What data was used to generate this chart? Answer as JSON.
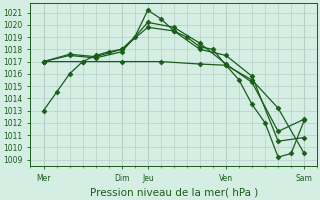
{
  "title": "Pression niveau de la mer( hPa )",
  "bg_color": "#d4eee4",
  "grid_color": "#b8cfc8",
  "line_color": "#1a5c1a",
  "ylim": [
    1008.5,
    1021.8
  ],
  "yticks": [
    1009,
    1010,
    1011,
    1012,
    1013,
    1014,
    1015,
    1016,
    1017,
    1018,
    1019,
    1020,
    1021
  ],
  "xlim": [
    0,
    22
  ],
  "xtick_positions": [
    1,
    7,
    9,
    15,
    21
  ],
  "xtick_labels": [
    "Mer",
    "Dim",
    "Jeu",
    "Ven",
    "Sam"
  ],
  "series": [
    {
      "x": [
        1,
        2,
        3,
        4,
        5,
        6,
        7,
        8,
        9,
        10,
        11,
        12,
        13,
        14,
        15,
        16,
        17,
        18,
        19,
        20,
        21
      ],
      "y": [
        1013.0,
        1014.5,
        1016.0,
        1017.0,
        1017.5,
        1017.8,
        1018.0,
        1019.0,
        1021.2,
        1020.5,
        1019.5,
        1019.0,
        1018.2,
        1018.0,
        1016.7,
        1015.5,
        1013.5,
        1012.0,
        1009.2,
        1009.5,
        1012.2
      ]
    },
    {
      "x": [
        1,
        3,
        5,
        7,
        9,
        11,
        13,
        15,
        17,
        19,
        21
      ],
      "y": [
        1017.0,
        1017.5,
        1017.3,
        1017.8,
        1020.2,
        1019.8,
        1018.5,
        1016.8,
        1015.3,
        1011.3,
        1012.3
      ]
    },
    {
      "x": [
        1,
        3,
        5,
        7,
        9,
        11,
        13,
        15,
        17,
        19,
        21
      ],
      "y": [
        1017.0,
        1017.6,
        1017.4,
        1018.0,
        1019.8,
        1019.5,
        1018.0,
        1017.5,
        1015.8,
        1010.5,
        1010.8
      ]
    },
    {
      "x": [
        1,
        4,
        7,
        10,
        13,
        15,
        17,
        19,
        21
      ],
      "y": [
        1017.0,
        1017.0,
        1017.0,
        1017.0,
        1016.8,
        1016.7,
        1015.5,
        1013.2,
        1009.5
      ]
    }
  ],
  "tick_fontsize": 5.5,
  "xlabel_fontsize": 7.5,
  "label_color": "#1a5c1a",
  "marker": "D",
  "markersize": 2.5,
  "linewidth": 0.9
}
